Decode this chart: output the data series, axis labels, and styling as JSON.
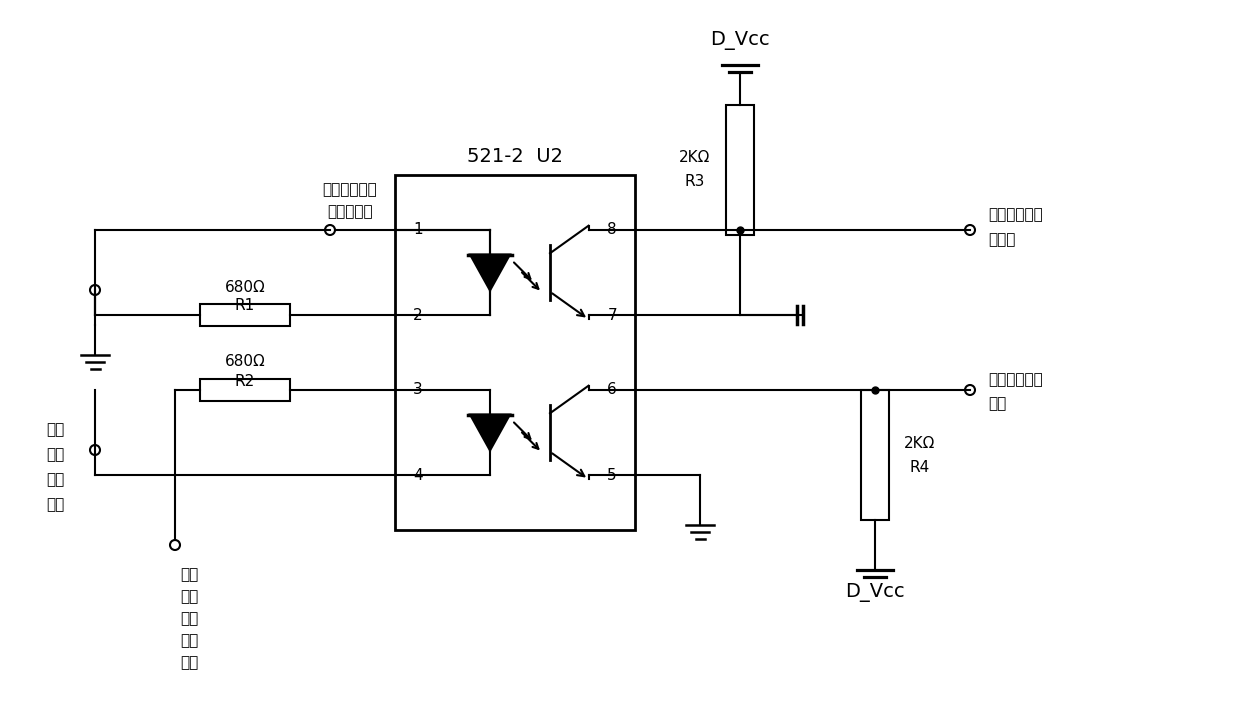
{
  "bg_color": "#ffffff",
  "line_color": "#000000",
  "fig_width": 12.39,
  "fig_height": 7.08,
  "dpi": 100,
  "labels": {
    "dvcc_top": "D_Vcc",
    "dvcc_bottom": "D_Vcc",
    "r3_line1": "2KΩ",
    "r3_line2": "R3",
    "r4_line1": "2KΩ",
    "r4_line2": "R4",
    "r1_line1": "680Ω",
    "r1_line2": "R1",
    "r2_line1": "680Ω",
    "r2_line2": "R2",
    "ic_name": "521-2  U2",
    "label_input1_line1": "起落架警告触",
    "label_input1_line2": "发信号输入",
    "label_output1_line1": "起落架警告信",
    "label_output1_line2": "号输出",
    "label_input2_line1": "失速",
    "label_input2_line2": "警告",
    "label_input2_line3": "触发",
    "label_input2_line4": "信号",
    "label_input2_line5": "输入",
    "label_output2_line1": "失速警告信号",
    "label_output2_line2": "输出",
    "label_power_line1": "飞机",
    "label_power_line2": "电源",
    "label_power_line3": "系统",
    "label_power_line4": "输入"
  }
}
